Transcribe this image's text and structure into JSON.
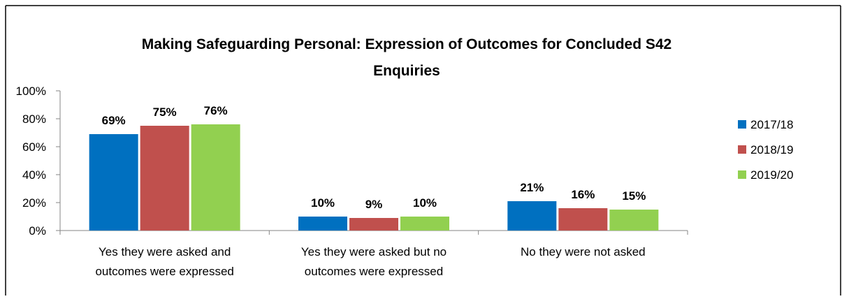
{
  "chart_data": {
    "type": "bar",
    "title_lines": [
      "Making Safeguarding Personal: Expression of Outcomes for Concluded S42",
      "Enquiries"
    ],
    "categories": [
      [
        "Yes they were asked and",
        "outcomes were expressed"
      ],
      [
        "Yes they were asked but no",
        "outcomes were expressed"
      ],
      [
        "No they were not asked"
      ]
    ],
    "series": [
      {
        "name": "2017/18",
        "color": "#0070C0",
        "values": [
          69,
          10,
          21
        ],
        "labels": [
          "69%",
          "10%",
          "21%"
        ]
      },
      {
        "name": "2018/19",
        "color": "#C0504D",
        "values": [
          75,
          9,
          16
        ],
        "labels": [
          "75%",
          "9%",
          "16%"
        ]
      },
      {
        "name": "2019/20",
        "color": "#92D050",
        "values": [
          76,
          10,
          15
        ],
        "labels": [
          "76%",
          "10%",
          "15%"
        ]
      }
    ],
    "ylim": [
      0,
      100
    ],
    "yticks": [
      0,
      20,
      40,
      60,
      80,
      100
    ],
    "ytick_labels": [
      "0%",
      "20%",
      "40%",
      "60%",
      "80%",
      "100%"
    ],
    "grid": false,
    "legend_position": "right"
  }
}
